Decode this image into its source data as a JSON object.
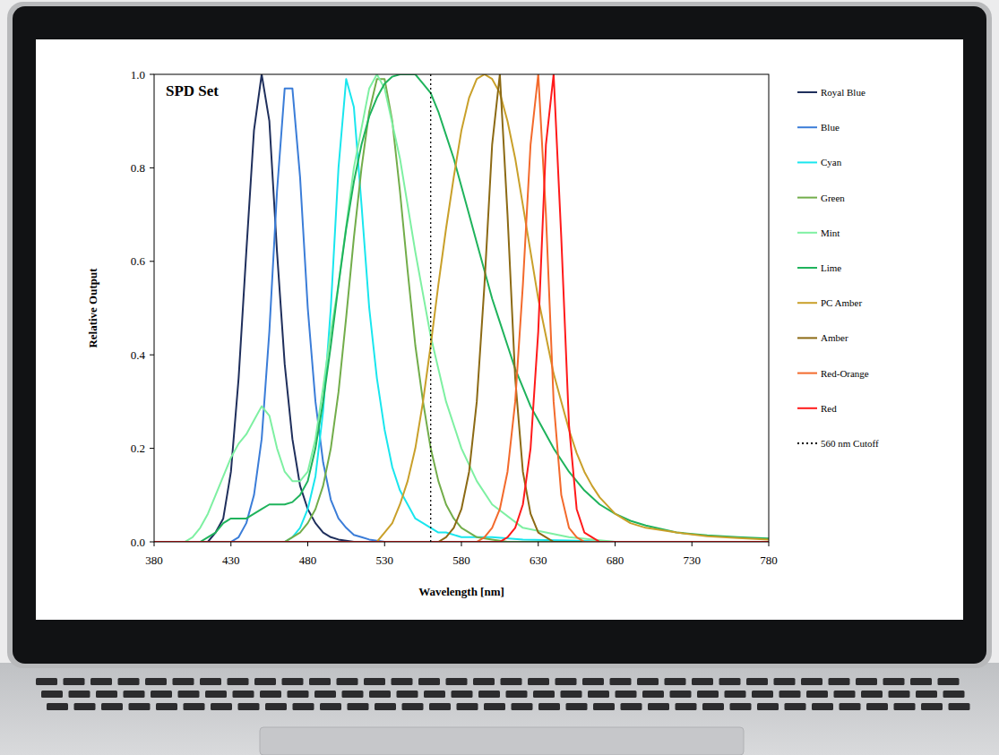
{
  "chart_data": {
    "type": "line",
    "title": "SPD Set",
    "x_label": "Wavelength [nm]",
    "y_label": "Relative Output",
    "xlim": [
      380,
      780
    ],
    "xticks": [
      380,
      430,
      480,
      530,
      580,
      630,
      680,
      730,
      780
    ],
    "ylim": [
      0,
      1
    ],
    "yticks": [
      {
        "value": 0,
        "label": "0.0"
      },
      {
        "value": 0.2,
        "label": "0.2"
      },
      {
        "value": 0.4,
        "label": "0.4"
      },
      {
        "value": 0.6,
        "label": "0.6"
      },
      {
        "value": 0.8,
        "label": "0.8"
      },
      {
        "value": 1,
        "label": "1.0"
      }
    ],
    "grid": false,
    "legend": "right",
    "series": [
      {
        "name": "Royal Blue",
        "color": "#1f2f5c",
        "line_style": "solid",
        "x": [
          380,
          415,
          420,
          425,
          430,
          435,
          440,
          445,
          450,
          455,
          460,
          465,
          470,
          475,
          480,
          485,
          490,
          495,
          500,
          510,
          780
        ],
        "values": [
          0,
          0,
          0.02,
          0.05,
          0.15,
          0.35,
          0.62,
          0.88,
          1.0,
          0.9,
          0.62,
          0.38,
          0.22,
          0.12,
          0.07,
          0.04,
          0.02,
          0.01,
          0.005,
          0,
          0
        ]
      },
      {
        "name": "Blue",
        "color": "#3b7dd8",
        "line_style": "solid",
        "x": [
          380,
          430,
          435,
          440,
          445,
          450,
          455,
          460,
          465,
          470,
          475,
          480,
          485,
          490,
          495,
          500,
          505,
          510,
          515,
          520,
          530,
          780
        ],
        "values": [
          0,
          0,
          0.01,
          0.04,
          0.1,
          0.22,
          0.45,
          0.75,
          0.97,
          0.97,
          0.78,
          0.5,
          0.3,
          0.17,
          0.09,
          0.05,
          0.03,
          0.015,
          0.01,
          0.005,
          0,
          0
        ]
      },
      {
        "name": "Cyan",
        "color": "#19e6ee",
        "line_style": "solid",
        "x": [
          380,
          465,
          470,
          475,
          480,
          485,
          490,
          495,
          500,
          505,
          510,
          515,
          520,
          525,
          530,
          535,
          540,
          545,
          550,
          555,
          560,
          565,
          570,
          580,
          600,
          620,
          650,
          680,
          780
        ],
        "values": [
          0,
          0,
          0.01,
          0.03,
          0.07,
          0.14,
          0.28,
          0.5,
          0.8,
          0.99,
          0.93,
          0.72,
          0.5,
          0.35,
          0.24,
          0.16,
          0.11,
          0.08,
          0.05,
          0.04,
          0.03,
          0.02,
          0.02,
          0.01,
          0.01,
          0.005,
          0.003,
          0,
          0
        ]
      },
      {
        "name": "Green",
        "color": "#72ad4a",
        "line_style": "solid",
        "x": [
          380,
          465,
          470,
          475,
          480,
          485,
          490,
          495,
          500,
          505,
          510,
          515,
          520,
          525,
          530,
          535,
          540,
          545,
          550,
          555,
          560,
          565,
          570,
          575,
          580,
          585,
          590,
          600,
          610,
          780
        ],
        "values": [
          0,
          0,
          0.01,
          0.02,
          0.04,
          0.07,
          0.12,
          0.2,
          0.32,
          0.48,
          0.65,
          0.8,
          0.92,
          0.99,
          0.99,
          0.9,
          0.75,
          0.58,
          0.42,
          0.3,
          0.2,
          0.13,
          0.08,
          0.05,
          0.03,
          0.02,
          0.01,
          0.005,
          0,
          0
        ]
      },
      {
        "name": "Mint",
        "color": "#7ef0a2",
        "line_style": "solid",
        "x": [
          380,
          400,
          405,
          410,
          415,
          420,
          425,
          430,
          435,
          440,
          445,
          450,
          455,
          460,
          465,
          470,
          475,
          480,
          485,
          490,
          495,
          500,
          510,
          520,
          525,
          530,
          540,
          550,
          560,
          570,
          580,
          590,
          600,
          620,
          650,
          680,
          780
        ],
        "values": [
          0,
          0,
          0.01,
          0.03,
          0.06,
          0.1,
          0.14,
          0.18,
          0.21,
          0.23,
          0.26,
          0.29,
          0.27,
          0.2,
          0.15,
          0.13,
          0.13,
          0.15,
          0.22,
          0.33,
          0.45,
          0.55,
          0.8,
          0.97,
          1.0,
          0.97,
          0.82,
          0.62,
          0.44,
          0.3,
          0.2,
          0.13,
          0.08,
          0.03,
          0.01,
          0,
          0
        ]
      },
      {
        "name": "Lime",
        "color": "#1fb35c",
        "line_style": "solid",
        "x": [
          380,
          410,
          415,
          420,
          425,
          430,
          440,
          445,
          450,
          455,
          465,
          470,
          475,
          480,
          485,
          490,
          495,
          500,
          505,
          510,
          515,
          520,
          525,
          530,
          535,
          540,
          545,
          550,
          555,
          560,
          565,
          570,
          575,
          580,
          585,
          590,
          595,
          600,
          605,
          610,
          615,
          620,
          625,
          630,
          640,
          650,
          660,
          670,
          680,
          690,
          700,
          720,
          740,
          760,
          780
        ],
        "values": [
          0,
          0,
          0.01,
          0.02,
          0.04,
          0.05,
          0.05,
          0.06,
          0.07,
          0.08,
          0.08,
          0.085,
          0.1,
          0.13,
          0.2,
          0.3,
          0.42,
          0.55,
          0.67,
          0.77,
          0.85,
          0.91,
          0.95,
          0.98,
          0.995,
          1.0,
          1.0,
          1.0,
          0.98,
          0.96,
          0.92,
          0.87,
          0.82,
          0.76,
          0.7,
          0.64,
          0.58,
          0.52,
          0.47,
          0.42,
          0.37,
          0.33,
          0.29,
          0.26,
          0.2,
          0.15,
          0.11,
          0.08,
          0.06,
          0.045,
          0.035,
          0.02,
          0.014,
          0.01,
          0.007
        ]
      },
      {
        "name": "PC Amber",
        "color": "#c9a02a",
        "line_style": "solid",
        "x": [
          380,
          525,
          530,
          535,
          540,
          545,
          550,
          555,
          560,
          565,
          570,
          575,
          580,
          585,
          590,
          595,
          600,
          605,
          610,
          615,
          620,
          625,
          630,
          635,
          640,
          645,
          650,
          655,
          660,
          665,
          670,
          680,
          690,
          700,
          720,
          740,
          760,
          780
        ],
        "values": [
          0,
          0,
          0.02,
          0.04,
          0.08,
          0.13,
          0.2,
          0.3,
          0.42,
          0.55,
          0.67,
          0.78,
          0.88,
          0.95,
          0.99,
          1.0,
          0.99,
          0.96,
          0.9,
          0.82,
          0.72,
          0.62,
          0.52,
          0.44,
          0.36,
          0.3,
          0.24,
          0.19,
          0.15,
          0.12,
          0.095,
          0.06,
          0.04,
          0.03,
          0.02,
          0.012,
          0.008,
          0.005
        ]
      },
      {
        "name": "Amber",
        "color": "#8c6a14",
        "line_style": "solid",
        "x": [
          380,
          565,
          570,
          575,
          580,
          585,
          590,
          595,
          600,
          605,
          610,
          615,
          620,
          625,
          630,
          635,
          640,
          780
        ],
        "values": [
          0,
          0,
          0.01,
          0.03,
          0.07,
          0.15,
          0.3,
          0.55,
          0.85,
          1.0,
          0.7,
          0.35,
          0.15,
          0.06,
          0.02,
          0.01,
          0,
          0
        ]
      },
      {
        "name": "Red-Orange",
        "color": "#f36a2c",
        "line_style": "solid",
        "x": [
          380,
          590,
          595,
          600,
          605,
          610,
          615,
          620,
          625,
          630,
          635,
          640,
          645,
          650,
          655,
          660,
          780
        ],
        "values": [
          0,
          0,
          0.01,
          0.03,
          0.07,
          0.15,
          0.3,
          0.55,
          0.85,
          1.0,
          0.7,
          0.3,
          0.1,
          0.03,
          0.01,
          0,
          0
        ]
      },
      {
        "name": "Red",
        "color": "#ff1a1a",
        "line_style": "solid",
        "x": [
          380,
          605,
          610,
          615,
          620,
          625,
          630,
          635,
          640,
          645,
          650,
          655,
          660,
          665,
          670,
          780
        ],
        "values": [
          0,
          0,
          0.01,
          0.03,
          0.08,
          0.2,
          0.45,
          0.85,
          1.0,
          0.65,
          0.25,
          0.07,
          0.02,
          0.01,
          0,
          0
        ]
      },
      {
        "name": "560 nm Cutoff",
        "color": "#000000",
        "line_style": "dotted",
        "x": [
          560,
          560
        ],
        "values": [
          0,
          1
        ]
      }
    ]
  }
}
